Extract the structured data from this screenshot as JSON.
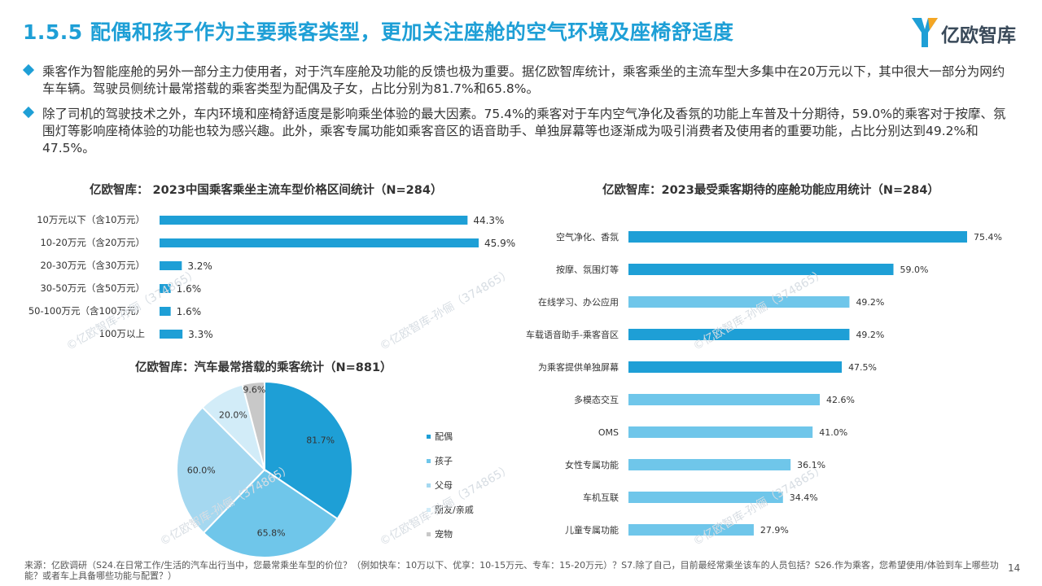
{
  "page": {
    "title": "1.5.5 配偶和孩子作为主要乘客类型，更加关注座舱的空气环境及座椅舒适度",
    "logo_text": "亿欧智库",
    "page_number": "14",
    "watermark": "©亿欧智库-孙俪（374865）",
    "accent_color": "#1e9fd6",
    "paragraphs": [
      "乘客作为智能座舱的另外一部分主力使用者，对于汽车座舱及功能的反馈也极为重要。据亿欧智库统计，乘客乘坐的主流车型大多集中在20万元以下，其中很大一部分为网约车车辆。驾驶员侧统计最常搭载的乘客类型为配偶及子女，占比分别为81.7%和65.8%。",
      "除了司机的驾驶技术之外，车内环境和座椅舒适度是影响乘坐体验的最大因素。75.4%的乘客对于车内空气净化及香氛的功能上车普及十分期待，59.0%的乘客对于按摩、氛围灯等影响座椅体验的功能也较为感兴趣。此外，乘客专属功能如乘客音区的语音助手、单独屏幕等也逐渐成为吸引消费者及使用者的重要功能，占比分别达到49.2%和47.5%。"
    ],
    "source": "来源：亿欧调研（S24.在日常工作/生活的汽车出行当中，您最常乘坐车型的价位？（例如快车：10万以下、优享：10-15万元、专车：15-20万元）？S7.除了自己，目前最经常乘坐该车的人员包括？S26.作为乘客，您希望使用/体验到车上哪些功能？或者车上具备哪些功能与配置？）"
  },
  "chart_data": [
    {
      "type": "bar",
      "orientation": "horizontal",
      "title": "亿欧智库： 2023中国乘客乘坐主流车型价格区间统计（N=284）",
      "categories": [
        "10万元以下（含10万元）",
        "10-20万元（含20万元）",
        "20-30万元（含30万元）",
        "30-50万元（含50万元）",
        "50-100万元（含100万元）",
        "100万以上"
      ],
      "values": [
        44.3,
        45.9,
        3.2,
        1.6,
        1.6,
        3.3
      ],
      "labels": [
        "44.3%",
        "45.9%",
        "3.2%",
        "1.6%",
        "1.6%",
        "3.3%"
      ],
      "xlim": [
        0,
        45.9
      ],
      "grid": false,
      "color": "#1e9fd6"
    },
    {
      "type": "pie",
      "title": "亿欧智库：汽车最常搭载的乘客统计（N=881）",
      "categories": [
        "配偶",
        "孩子",
        "父母",
        "朋友/亲戚",
        "宠物"
      ],
      "values": [
        81.7,
        65.8,
        60.0,
        20.0,
        9.6
      ],
      "labels": [
        "81.7%",
        "65.8%",
        "60.0%",
        "20.0%",
        "9.6%"
      ],
      "colors": [
        "#1e9fd6",
        "#6fc6ea",
        "#a5d8f0",
        "#d2ecf8",
        "#c8c8c8"
      ],
      "legend": "right"
    },
    {
      "type": "bar",
      "orientation": "horizontal",
      "title": "亿欧智库：2023最受乘客期待的座舱功能应用统计（N=284）",
      "categories": [
        "空气净化、香氛",
        "按摩、氛围灯等",
        "在线学习、办公应用",
        "车载语音助手-乘客音区",
        "为乘客提供单独屏幕",
        "多模态交互",
        "OMS",
        "女性专属功能",
        "车机互联",
        "儿童专属功能"
      ],
      "values": [
        75.4,
        59.0,
        49.2,
        49.2,
        47.5,
        42.6,
        41.0,
        36.1,
        34.4,
        27.9
      ],
      "labels": [
        "75.4%",
        "59.0%",
        "49.2%",
        "49.2%",
        "47.5%",
        "42.6%",
        "41.0%",
        "36.1%",
        "34.4%",
        "27.9%"
      ],
      "xlim": [
        0,
        75.4
      ],
      "grid": false,
      "colors": [
        "#1e9fd6",
        "#1e9fd6",
        "#6fc6ea",
        "#1e9fd6",
        "#1e9fd6",
        "#6fc6ea",
        "#6fc6ea",
        "#6fc6ea",
        "#6fc6ea",
        "#6fc6ea"
      ]
    }
  ]
}
